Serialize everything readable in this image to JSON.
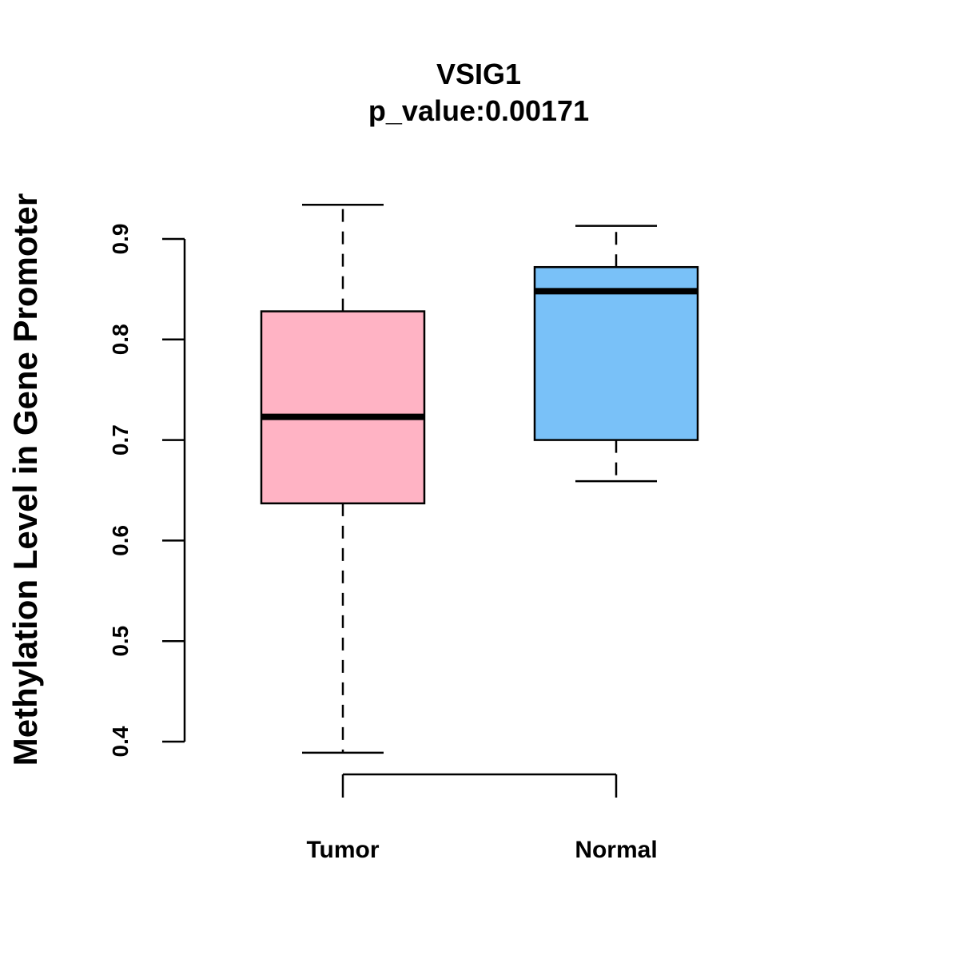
{
  "chart_data": {
    "type": "box",
    "title": "VSIG1",
    "subtitle": "p_value:0.00171",
    "xlabel": "",
    "ylabel": "Methylation Level in Gene Promoter",
    "ylim": [
      0.4,
      0.9
    ],
    "yticks": [
      "0.4",
      "0.5",
      "0.6",
      "0.7",
      "0.8",
      "0.9"
    ],
    "categories": [
      "Tumor",
      "Normal"
    ],
    "boxes": [
      {
        "name": "Tumor",
        "min": 0.389,
        "q1": 0.637,
        "median": 0.723,
        "q3": 0.828,
        "max": 0.934,
        "color": "#FFB3C4"
      },
      {
        "name": "Normal",
        "min": 0.659,
        "q1": 0.7,
        "median": 0.848,
        "q3": 0.872,
        "max": 0.913,
        "color": "#79C1F8"
      }
    ],
    "grid": false,
    "legend": "none"
  }
}
